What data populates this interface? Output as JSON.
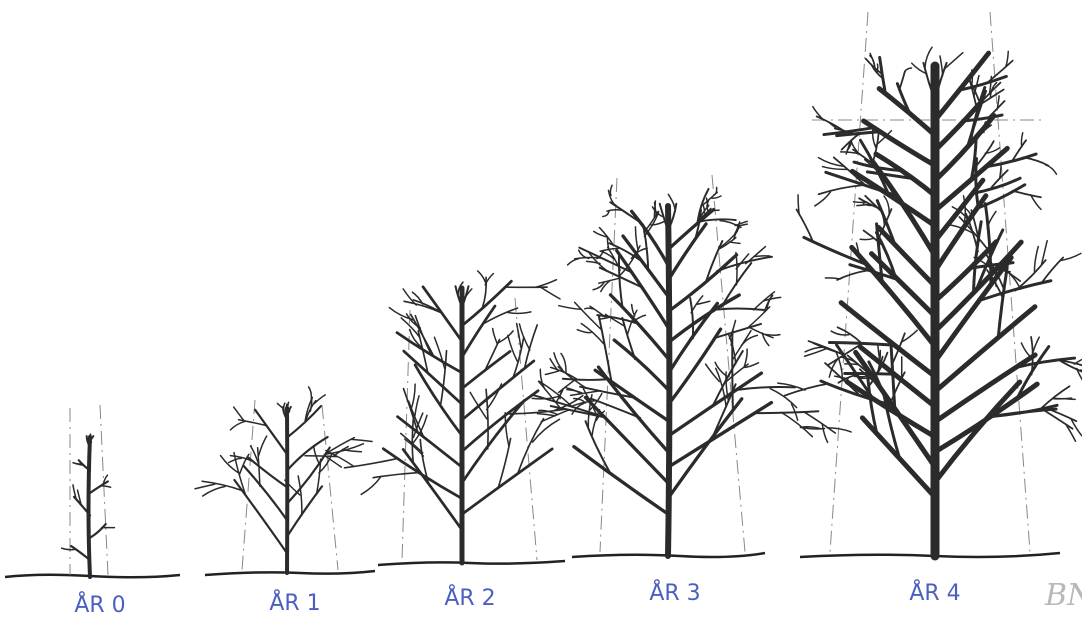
{
  "labels": [
    "ÅR 0",
    "ÅR 1",
    "ÅR 2",
    "ÅR 3",
    "ÅR 4"
  ],
  "signature": "BN"
}
